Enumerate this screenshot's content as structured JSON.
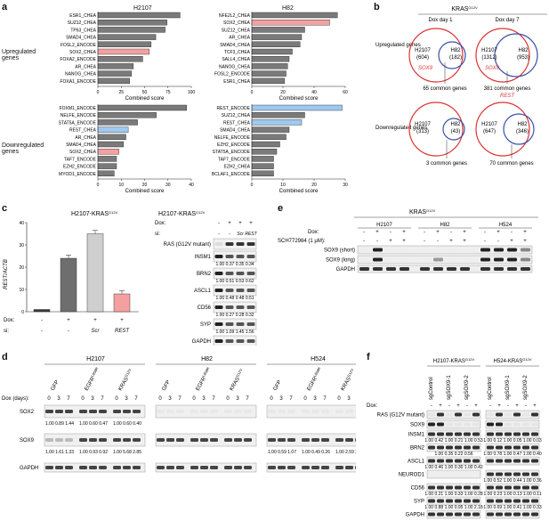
{
  "panels": {
    "a": {
      "label": "a",
      "col_titles": [
        "H2107",
        "H82"
      ],
      "row_labels": [
        "Upregulated genes",
        "Downregulated genes"
      ],
      "xlabel": "Combined score",
      "charts": [
        {
          "id": "a_up_h2107",
          "type": "bar",
          "xlim": [
            0,
            100
          ],
          "ticks": [
            0,
            25,
            50,
            75,
            100
          ],
          "categories": [
            "ESR1_CHEA",
            "SUZ12_CHEA",
            "TP63_CHEA",
            "SMAD4_CHEA",
            "FOSL2_ENCODE",
            "SOX2_CHEA",
            "FOXA2_ENCODE",
            "AR_CHEA",
            "NANOG_CHEA",
            "FOXA1_ENCODE"
          ],
          "values": [
            88,
            74,
            72,
            62,
            57,
            55,
            48,
            38,
            36,
            34
          ],
          "highlight": {
            "SOX2_CHEA": "#f4a0a0"
          }
        },
        {
          "id": "a_up_h82",
          "type": "bar",
          "xlim": [
            0,
            60
          ],
          "ticks": [
            0,
            20,
            40,
            60
          ],
          "categories": [
            "NFE2L2_CHEA",
            "SOX2_CHEA",
            "SUZ12_CHEA",
            "AR_CHEA",
            "SMAD4_CHEA",
            "TCF3_CHEA",
            "SALL4_CHEA",
            "NANOG_CHEA",
            "FOSL2_ENCODE",
            "ESR1_CHEA"
          ],
          "values": [
            55,
            50,
            34,
            32,
            31,
            26,
            24,
            23,
            22,
            21
          ],
          "highlight": {
            "SOX2_CHEA": "#f4a0a0"
          }
        },
        {
          "id": "a_down_h2107",
          "type": "bar",
          "xlim": [
            0,
            40
          ],
          "ticks": [
            0,
            10,
            20,
            30,
            40
          ],
          "categories": [
            "FOXM1_ENCODE",
            "NELFE_ENCODE",
            "STAT5A_ENCODE",
            "REST_CHEA",
            "AR_CHEA",
            "SMAD4_CHEA",
            "SOX2_CHEA",
            "TAF7_ENCODE",
            "EZH2_ENCODE",
            "MYOD1_ENCODE"
          ],
          "values": [
            38,
            25,
            17,
            13,
            12,
            11,
            9,
            8,
            8,
            7
          ],
          "highlight": {
            "REST_CHEA": "#9ec9f0",
            "SOX2_CHEA": "#f4a0a0"
          }
        },
        {
          "id": "a_down_h82",
          "type": "bar",
          "xlim": [
            0,
            30
          ],
          "ticks": [
            0,
            10,
            20,
            30
          ],
          "categories": [
            "REST_ENCODE",
            "SUZ12_CHEA",
            "REST_CHEA",
            "SMAD4_CHEA",
            "NELFE_ENCODE",
            "EZH2_ENCODE",
            "STAT5A_ENCODE",
            "TAF7_ENCODE",
            "EZH2_CHEA",
            "BCLAF1_ENCODE"
          ],
          "values": [
            29,
            17,
            16,
            12,
            11,
            9,
            8,
            7,
            7,
            7
          ],
          "highlight": {
            "REST_ENCODE": "#9ec9f0",
            "REST_CHEA": "#9ec9f0"
          }
        }
      ]
    },
    "b": {
      "label": "b",
      "title": "KRAS",
      "title_sup": "G12V",
      "timepoints": [
        "Dox day 1",
        "Dox day 7"
      ],
      "row_labels": [
        "Upregulated genes",
        "Downregulated genes"
      ],
      "venns": [
        {
          "left": "H2107",
          "left_n": "(604)",
          "right": "H82",
          "right_n": "(182)",
          "gene": "SOX9",
          "common": "65 common genes"
        },
        {
          "left": "H2107",
          "left_n": "(1312)",
          "right": "H82",
          "right_n": "(953)",
          "gene": "SOX9",
          "top_gene": "REST",
          "common": "381 common genes"
        },
        {
          "left": "H2107",
          "left_n": "(313)",
          "right": "H82",
          "right_n": "(43)",
          "common": "3 common genes"
        },
        {
          "left": "H2107",
          "left_n": "(647)",
          "right": "H82",
          "right_n": "(346)",
          "common": "70 common genes"
        }
      ]
    },
    "c": {
      "label": "c",
      "bar_title": "H2107-KRAS",
      "bar_title_sup": "G12V",
      "blot_title": "H2107-KRAS",
      "blot_title_sup": "G12V",
      "chart_data": {
        "type": "bar",
        "ylabel": "REST/ACTB",
        "ylim": [
          0,
          40
        ],
        "ticks": [
          0,
          10,
          20,
          30,
          40
        ],
        "categories": [
          "1",
          "2",
          "3",
          "4"
        ],
        "values": [
          1,
          24,
          35,
          8
        ],
        "colors": [
          "#3a3a3a",
          "#6e6e6e",
          "#cfcfcf",
          "#f4a0a0"
        ]
      },
      "dox_row": [
        "-",
        "+",
        "+",
        "+"
      ],
      "si_row": [
        "-",
        "-",
        "Scr",
        "REST"
      ],
      "dox_label": "Dox:",
      "si_label": "si:",
      "blot_dox": [
        "-",
        "+",
        "+",
        "+"
      ],
      "blot_si": [
        "-",
        "-",
        "Scr",
        "REST"
      ],
      "bands": [
        {
          "name": "RAS (G12V mutant)",
          "quant": ""
        },
        {
          "name": "INSM1",
          "quant": "1.00 0.37 0.35 0.34"
        },
        {
          "name": "BRN2",
          "quant": "1.00 0.51 0.53 0.62"
        },
        {
          "name": "ASCL1",
          "quant": "1.00 0.48 0.48 0.51"
        },
        {
          "name": "CD56",
          "quant": "1.00 0.27 0.28 0.32"
        },
        {
          "name": "SYP",
          "quant": "1.00 1.09 1.45 1.56"
        },
        {
          "name": "GAPDH",
          "quant": ""
        }
      ]
    },
    "d": {
      "label": "d",
      "cells": [
        "H2107",
        "H82",
        "H524"
      ],
      "constructs": [
        "GFP",
        "EGFR",
        "KRAS"
      ],
      "construct_sup": [
        "",
        "L858R",
        "G12V"
      ],
      "dox_label": "Dox (days):",
      "days": [
        "0",
        "3",
        "7"
      ],
      "bands": [
        {
          "name": "SOX2",
          "quant": [
            "1.00 0.89 1.44",
            "1.00 0.60 0.47",
            "1.00 0.60 0.40"
          ]
        },
        {
          "name": "SOX9",
          "quant": [
            "1.00 1.61 1.33",
            "1.00 0.93 0.92",
            "1.00 5.68 2.85",
            "1.00 0.59 1.07",
            "1.00 0.49 0.26",
            "1.00 2.59 2.09"
          ]
        },
        {
          "name": "GAPDH",
          "quant": []
        }
      ]
    },
    "e": {
      "label": "e",
      "title": "KRAS",
      "title_sup": "G12V",
      "cells": [
        "H2107",
        "H82",
        "H524"
      ],
      "dox_label": "Dox:",
      "sch_label": "SCH772984 (1 μM):",
      "dox": [
        "-",
        "+",
        "-",
        "+"
      ],
      "sch": [
        "-",
        "-",
        "+",
        "+"
      ],
      "bands": [
        "SOX9 (short)",
        "SOX9 (long)",
        "GAPDH"
      ]
    },
    "f": {
      "label": "f",
      "groups": [
        "H2107-KRAS",
        "H524-KRAS"
      ],
      "group_sup": "G12V",
      "guides": [
        "sgControl",
        "sgSOX9-1",
        "sgSOX9-2"
      ],
      "dox_label": "Dox:",
      "dox": [
        "-",
        "+"
      ],
      "bands": [
        {
          "name": "RAS (G12V mutant)",
          "quant": [
            "",
            ""
          ]
        },
        {
          "name": "SOX9",
          "quant": [
            "",
            ""
          ]
        },
        {
          "name": "INSM1",
          "quant": [
            "1.00 0.42 1.00 0.21 1.00 0.53",
            "1.00 0.12 1.00 0.05 1.00 0.03"
          ]
        },
        {
          "name": "BRN2",
          "quant": [
            "1.00 0.35 0.22 0.56",
            "1.00 0.78 1.00 0.47 1.00 0.40"
          ]
        },
        {
          "name": "ASCL1",
          "quant": [
            "1.00 0.46 1.00 0.30 1.00 0.42",
            ""
          ]
        },
        {
          "name": "NEUROD1",
          "quant": [
            "",
            "1.00 0.52 1.00 0.44 1.00 0.36"
          ]
        },
        {
          "name": "CD56",
          "quant": [
            "1.00 0.21 1.00 0.33 1.00 0.28",
            "1.00 0.23 1.00 0.13 1.00 0.11"
          ]
        },
        {
          "name": "SYP",
          "quant": [
            "1.00 0.88 1.00 0.95 1.00 2.18",
            "1.00 0.69 1.00 0.41 1.00 0.33"
          ]
        },
        {
          "name": "GAPDH",
          "quant": [
            "",
            ""
          ]
        }
      ]
    }
  }
}
